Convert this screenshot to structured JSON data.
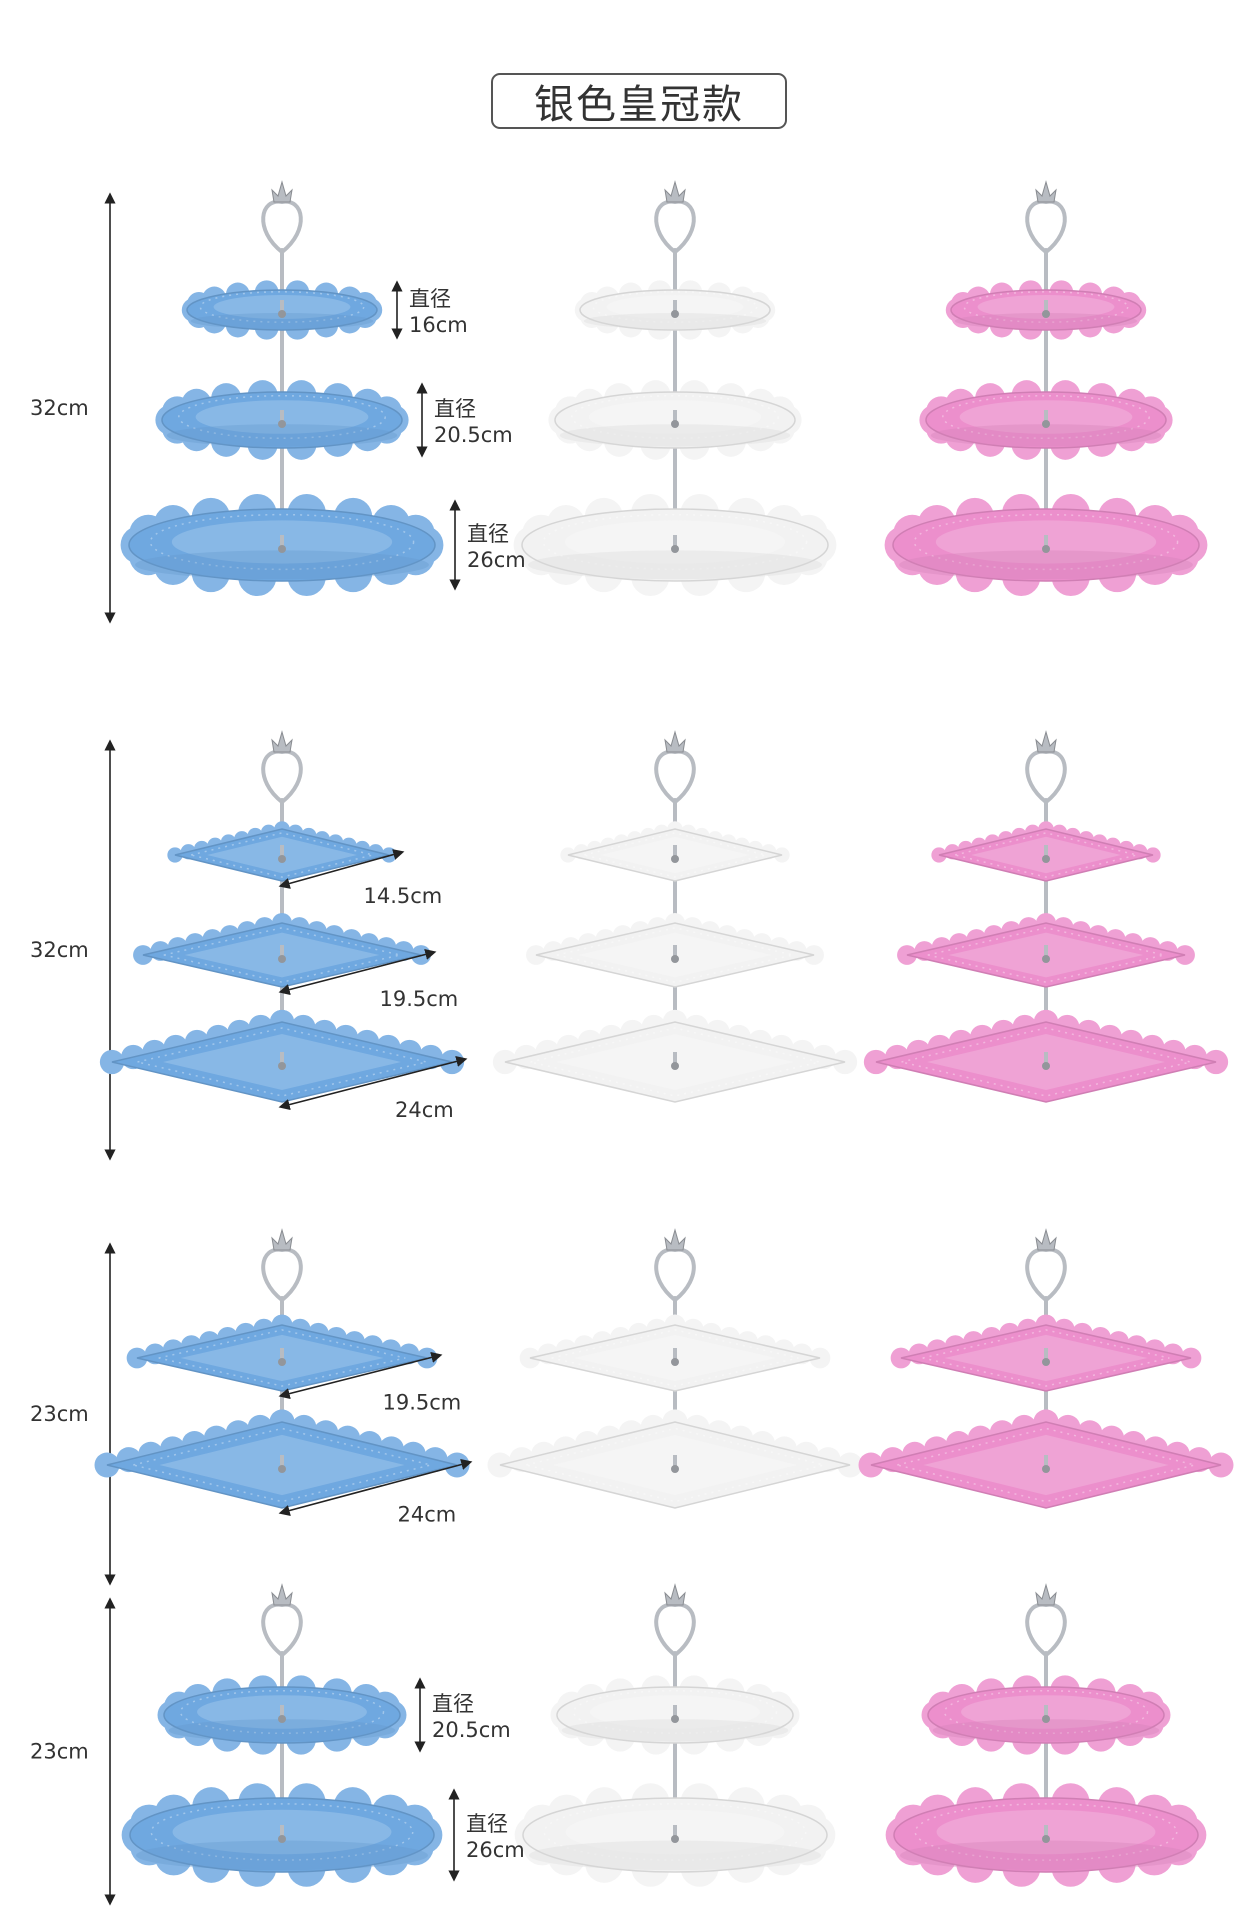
{
  "title": "银色皇冠款",
  "colors": {
    "blue": "#6fa8e0",
    "white": "#f2f2f2",
    "pink": "#ec8fcc",
    "stand": "#b8bcc2"
  },
  "variants": [
    "blue",
    "white",
    "pink"
  ],
  "rows": [
    {
      "height_label": "32cm",
      "shape": "round",
      "tiers": 3,
      "dims": [
        {
          "prefix": "直径",
          "value": "16cm"
        },
        {
          "prefix": "直径",
          "value": "20.5cm"
        },
        {
          "prefix": "直径",
          "value": "26cm"
        }
      ]
    },
    {
      "height_label": "32cm",
      "shape": "square",
      "tiers": 3,
      "dims": [
        {
          "prefix": "",
          "value": "14.5cm"
        },
        {
          "prefix": "",
          "value": "19.5cm"
        },
        {
          "prefix": "",
          "value": "24cm"
        }
      ]
    },
    {
      "height_label": "23cm",
      "shape": "square",
      "tiers": 2,
      "dims": [
        {
          "prefix": "",
          "value": "19.5cm"
        },
        {
          "prefix": "",
          "value": "24cm"
        }
      ]
    },
    {
      "height_label": "23cm",
      "shape": "round",
      "tiers": 2,
      "dims": [
        {
          "prefix": "直径",
          "value": "20.5cm"
        },
        {
          "prefix": "直径",
          "value": "26cm"
        }
      ]
    }
  ]
}
